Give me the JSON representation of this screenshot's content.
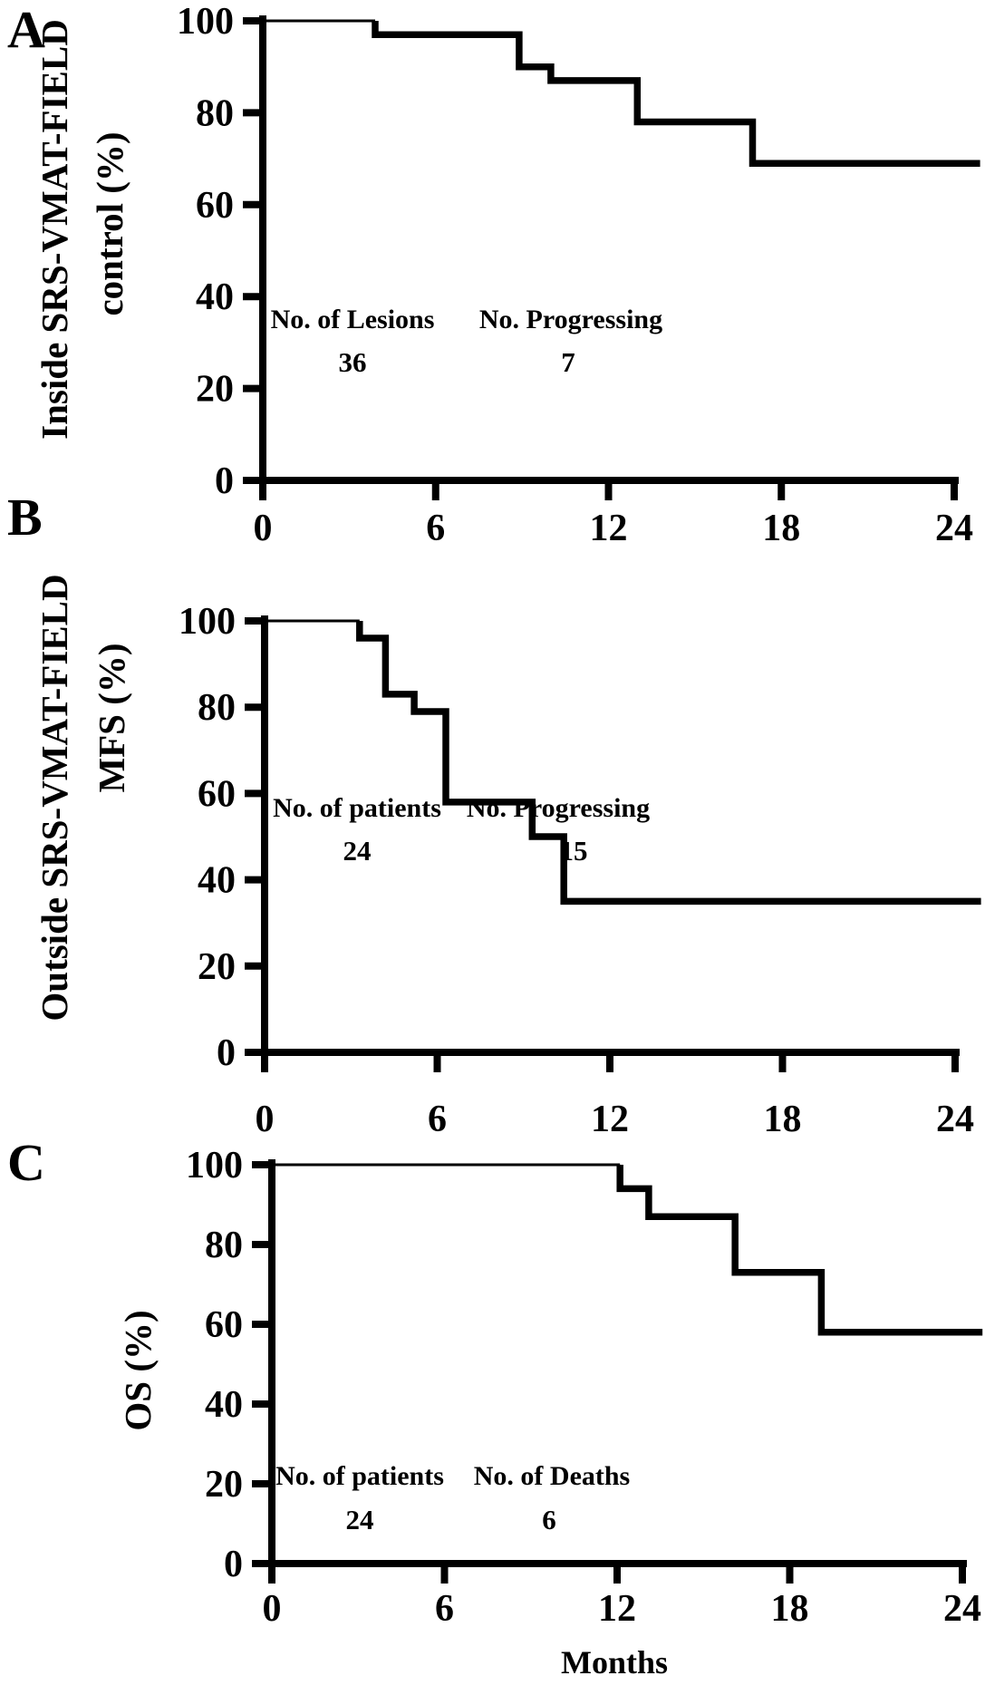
{
  "colors": {
    "ink": "#000000",
    "background": "#ffffff"
  },
  "x_axis_shared": {
    "title": "Months"
  },
  "chart_data": [
    {
      "panel": "A",
      "panel_label": "A",
      "type": "line",
      "title": "",
      "y_axis_title_lines": [
        "Inside SRS-VMAT-FIELD",
        "control (%)"
      ],
      "ylabel": "Inside SRS-VMAT-FIELD control (%)",
      "xlabel": "",
      "xlim": [
        0,
        24
      ],
      "ylim": [
        0,
        100
      ],
      "x_ticks": [
        0,
        6,
        12,
        18,
        24
      ],
      "y_ticks": [
        100,
        80,
        60,
        40,
        20,
        0
      ],
      "grid": false,
      "legend": null,
      "series": [
        {
          "name": "km-initial-segment",
          "stroke_style": "thin",
          "points": [
            [
              0,
              100
            ],
            [
              3.9,
              100
            ]
          ]
        },
        {
          "name": "km-curve",
          "stroke_style": "thick",
          "points": [
            [
              3.9,
              100
            ],
            [
              3.9,
              97
            ],
            [
              8.9,
              97
            ],
            [
              8.9,
              90
            ],
            [
              10,
              90
            ],
            [
              10,
              87
            ],
            [
              13,
              87
            ],
            [
              13,
              78
            ],
            [
              17,
              78
            ],
            [
              17,
              69
            ],
            [
              24.9,
              69
            ]
          ]
        }
      ],
      "annotations": [
        {
          "label": "No. of Lesions",
          "value": "36"
        },
        {
          "label": "No. Progressing",
          "value": "7"
        }
      ]
    },
    {
      "panel": "B",
      "panel_label": "B",
      "type": "line",
      "title": "",
      "y_axis_title_lines": [
        "Outside SRS-VMAT-FIELD",
        "MFS (%)"
      ],
      "ylabel": "Outside SRS-VMAT-FIELD MFS (%)",
      "xlabel": "",
      "xlim": [
        0,
        24
      ],
      "ylim": [
        0,
        100
      ],
      "x_ticks": [
        0,
        6,
        12,
        18,
        24
      ],
      "y_ticks": [
        100,
        80,
        60,
        40,
        20,
        0
      ],
      "grid": false,
      "legend": null,
      "series": [
        {
          "name": "km-initial-segment",
          "stroke_style": "thin",
          "points": [
            [
              0,
              100
            ],
            [
              3.3,
              100
            ]
          ]
        },
        {
          "name": "km-curve",
          "stroke_style": "thick",
          "points": [
            [
              3.3,
              100
            ],
            [
              3.3,
              96
            ],
            [
              4.2,
              96
            ],
            [
              4.2,
              83
            ],
            [
              5.2,
              83
            ],
            [
              5.2,
              79
            ],
            [
              6.3,
              79
            ],
            [
              6.3,
              58
            ],
            [
              9.3,
              58
            ],
            [
              9.3,
              50
            ],
            [
              10.4,
              50
            ],
            [
              10.4,
              35
            ],
            [
              24.9,
              35
            ]
          ]
        }
      ],
      "annotations": [
        {
          "label": "No. of patients",
          "value": "24"
        },
        {
          "label": "No. Progressing",
          "value": "15"
        }
      ]
    },
    {
      "panel": "C",
      "panel_label": "C",
      "type": "line",
      "title": "",
      "y_axis_title_lines": [
        "OS (%)"
      ],
      "ylabel": "OS (%)",
      "xlabel": "Months",
      "xlim": [
        0,
        24
      ],
      "ylim": [
        0,
        100
      ],
      "x_ticks": [
        0,
        6,
        12,
        18,
        24
      ],
      "y_ticks": [
        100,
        80,
        60,
        40,
        20,
        0
      ],
      "grid": false,
      "legend": null,
      "series": [
        {
          "name": "km-initial-segment",
          "stroke_style": "thin",
          "points": [
            [
              0,
              100
            ],
            [
              12.1,
              100
            ]
          ]
        },
        {
          "name": "km-curve",
          "stroke_style": "thick",
          "points": [
            [
              12.1,
              100
            ],
            [
              12.1,
              94
            ],
            [
              13.1,
              94
            ],
            [
              13.1,
              87
            ],
            [
              16.1,
              87
            ],
            [
              16.1,
              73
            ],
            [
              19.1,
              73
            ],
            [
              19.1,
              58
            ],
            [
              24.7,
              58
            ]
          ]
        }
      ],
      "annotations": [
        {
          "label": "No. of patients",
          "value": "24"
        },
        {
          "label": "No. of Deaths",
          "value": "6"
        }
      ]
    }
  ]
}
